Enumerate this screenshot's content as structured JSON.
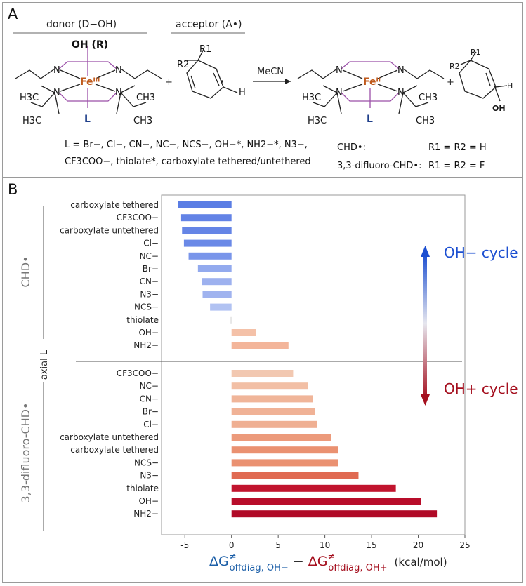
{
  "panel_a": {
    "label": "A",
    "donor_header": "donor (D−OH)",
    "acceptor_header": "acceptor (A•)",
    "oh_r": "OH (R)",
    "fe3": "Feᴵᴵᴵ",
    "fe2": "Feᴵᴵ",
    "axial_L": "L",
    "N": "N",
    "H3C": "H3C",
    "CH3": "CH3",
    "R1": "R1",
    "R2": "R2",
    "H": "H",
    "OH": "OH",
    "plus": "+",
    "solvent": "MeCN",
    "ligands_line1": "L = Br−, Cl−, CN−, NC−, NCS−, OH−*, NH2−*, N3−,",
    "ligands_line2": "CF3COO−, thiolate*, carboxylate tethered/untethered",
    "substrate1_name": "CHD•:",
    "substrate1_def": "R1 = R2 = H",
    "substrate2_name": "3,3-difluoro-CHD•:",
    "substrate2_def": "R1 = R2 = F"
  },
  "panel_b": {
    "label": "B",
    "group_axis_label": "axial L",
    "arrow_top_label": "OH− cycle",
    "arrow_bottom_label": "OH+ cycle"
  },
  "chart_data": {
    "type": "bar",
    "orientation": "horizontal",
    "xlabel": "ΔG≠offdiag, OH− − ΔG≠offdiag, OH+ (kcal/mol)",
    "xlabel_parts": {
      "dg1": "ΔG",
      "sup": "≠",
      "sub1": "offdiag, OH−",
      "minus": "−",
      "dg2": "ΔG",
      "sub2": "offdiag, OH+",
      "unit": "(kcal/mol)"
    },
    "xlim": [
      -7.5,
      25
    ],
    "xticks": [
      -5,
      0,
      5,
      10,
      15,
      20,
      25
    ],
    "xtick_labels": [
      "-5",
      "0",
      "5",
      "10",
      "15",
      "20",
      "25"
    ],
    "groups": [
      {
        "name": "CHD•",
        "categories": [
          "carboxylate tethered",
          "CF3COO−",
          "carboxylate untethered",
          "Cl−",
          "NC−",
          "Br−",
          "CN−",
          "N3−",
          "NCS−",
          "thiolate",
          "OH−",
          "NH2−"
        ],
        "values": [
          -5.7,
          -5.4,
          -5.3,
          -5.1,
          -4.6,
          -3.6,
          -3.2,
          -3.1,
          -2.3,
          -0.1,
          2.6,
          6.1
        ],
        "colors": [
          "#5a7de4",
          "#6383e6",
          "#6585e6",
          "#6a89e7",
          "#7995ea",
          "#93aaee",
          "#9db1ef",
          "#a0b3ef",
          "#b1c2f2",
          "#dcdcdc",
          "#f4c1a8",
          "#f3b59a"
        ]
      },
      {
        "name": "3,3-difluoro-CHD•",
        "categories": [
          "CF3COO−",
          "NC−",
          "CN−",
          "Br−",
          "Cl−",
          "carboxylate untethered",
          "carboxylate tethered",
          "NCS−",
          "N3−",
          "thiolate",
          "OH−",
          "NH2−"
        ],
        "values": [
          6.6,
          8.2,
          8.7,
          8.9,
          9.2,
          10.7,
          11.4,
          11.4,
          13.6,
          17.6,
          20.3,
          22.0
        ],
        "colors": [
          "#f2c8b1",
          "#f2bfa5",
          "#f0b599",
          "#f0b296",
          "#efaf92",
          "#ec9a7b",
          "#ea9171",
          "#ea9171",
          "#e06a52",
          "#c1142e",
          "#b80d2a",
          "#b00a27"
        ]
      }
    ]
  }
}
